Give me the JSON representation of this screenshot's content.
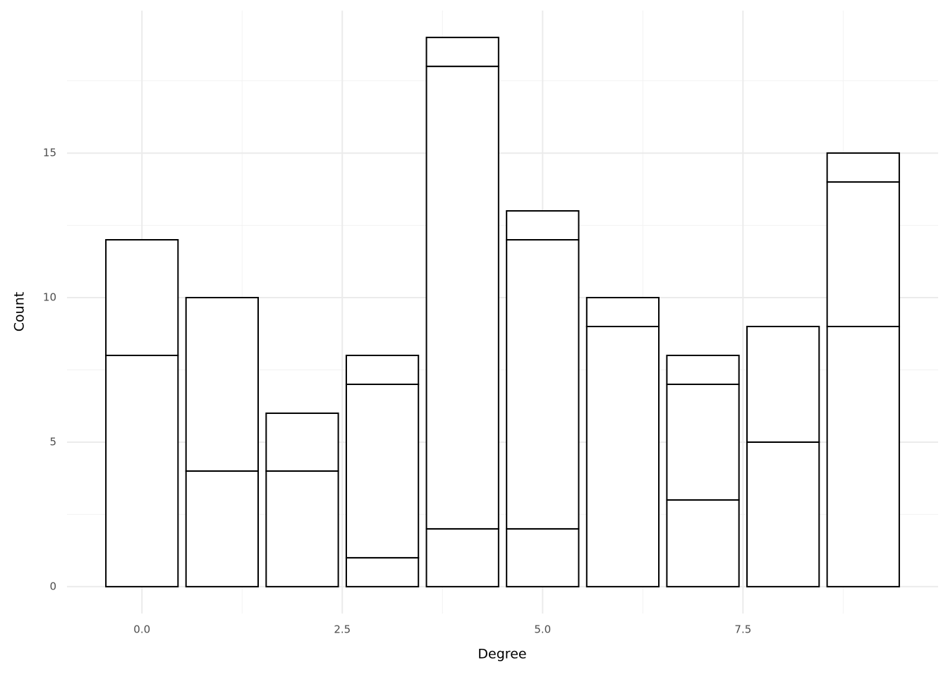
{
  "chart_data": {
    "type": "stacked_bar",
    "xlabel": "Degree",
    "ylabel": "Count",
    "x": [
      0,
      1,
      2,
      3,
      4,
      5,
      6,
      7,
      8,
      9
    ],
    "series": [
      {
        "values": [
          8,
          4,
          4,
          1,
          2,
          2,
          9,
          3,
          5,
          9
        ]
      },
      {
        "values": [
          4,
          6,
          2,
          6,
          16,
          10,
          1,
          4,
          4,
          5
        ]
      },
      {
        "values": [
          null,
          null,
          null,
          1,
          1,
          1,
          null,
          1,
          null,
          1
        ]
      }
    ],
    "fill": "#ffffff",
    "edgecolor": "#000000",
    "xlim": [
      -0.935,
      9.935
    ],
    "xticks": [
      {
        "value": 0,
        "label": "0.0"
      },
      2.5,
      {
        "value": 5,
        "label": "5.0"
      },
      7.5
    ],
    "x_minor_ticks": [
      1.25,
      3.75,
      6.25,
      8.75
    ],
    "ylim": [
      -0.93,
      19.93
    ],
    "yticks": [
      0,
      5,
      10,
      15
    ],
    "y_minor_ticks": [
      2.5,
      7.5,
      12.5,
      17.5
    ],
    "grid": true
  }
}
